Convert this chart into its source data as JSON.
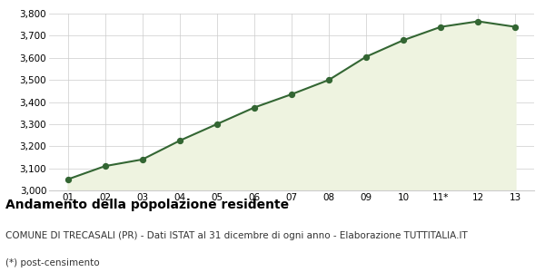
{
  "x_labels": [
    "01",
    "02",
    "03",
    "04",
    "05",
    "06",
    "07",
    "08",
    "09",
    "10",
    "11*",
    "12",
    "13"
  ],
  "x_values": [
    1,
    2,
    3,
    4,
    5,
    6,
    7,
    8,
    9,
    10,
    11,
    12,
    13
  ],
  "y_values": [
    3050,
    3110,
    3140,
    3225,
    3300,
    3375,
    3435,
    3500,
    3605,
    3680,
    3740,
    3765,
    3740
  ],
  "ylim": [
    3000,
    3800
  ],
  "yticks": [
    3000,
    3100,
    3200,
    3300,
    3400,
    3500,
    3600,
    3700,
    3800
  ],
  "line_color": "#336633",
  "fill_color": "#eef3e0",
  "marker_color": "#336633",
  "bg_color": "#ffffff",
  "plot_bg_color": "#ffffff",
  "grid_color": "#cccccc",
  "title": "Andamento della popolazione residente",
  "subtitle": "COMUNE DI TRECASALI (PR) - Dati ISTAT al 31 dicembre di ogni anno - Elaborazione TUTTITALIA.IT",
  "footnote": "(*) post-censimento",
  "title_fontsize": 10,
  "subtitle_fontsize": 7.5,
  "footnote_fontsize": 7.5
}
